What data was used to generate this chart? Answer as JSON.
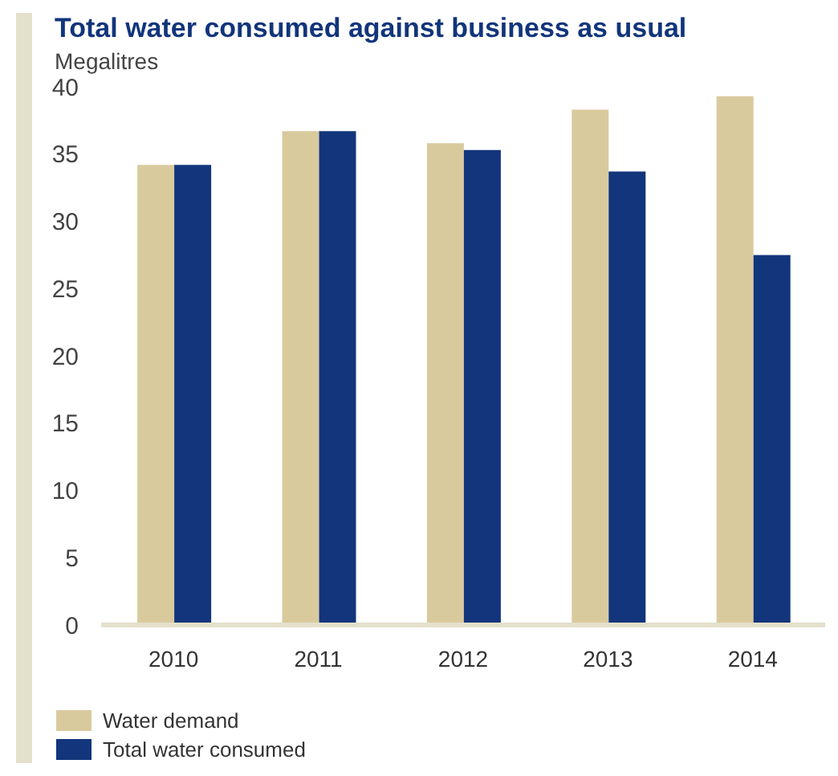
{
  "chart_data": {
    "type": "bar",
    "title": "Total water consumed against business as usual",
    "ylabel": "Megalitres",
    "categories": [
      "2010",
      "2011",
      "2012",
      "2013",
      "2014"
    ],
    "series": [
      {
        "name": "Water demand",
        "color": "#d9ca9e",
        "values": [
          34.2,
          36.7,
          35.8,
          38.3,
          39.3
        ]
      },
      {
        "name": "Total water consumed",
        "color": "#12357b",
        "values": [
          34.2,
          36.7,
          35.3,
          33.7,
          27.5
        ]
      }
    ],
    "ylim": [
      0,
      40
    ],
    "yticks": [
      0,
      5,
      10,
      15,
      20,
      25,
      30,
      35,
      40
    ],
    "grid": false,
    "legend": "bottom left"
  }
}
